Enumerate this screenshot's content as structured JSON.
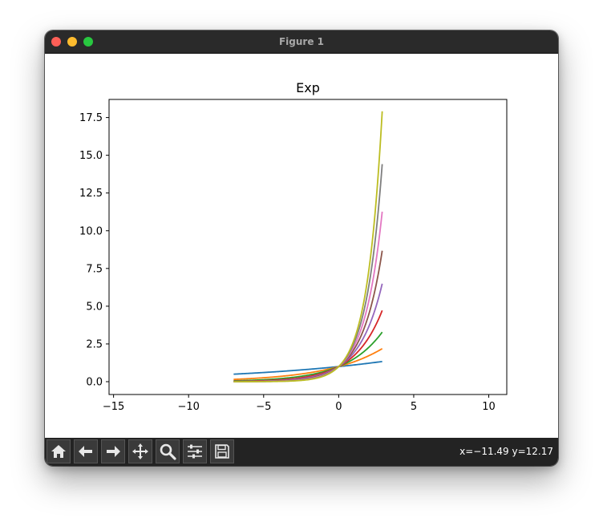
{
  "window": {
    "title": "Figure 1"
  },
  "toolbar": {
    "buttons": [
      {
        "name": "home-icon"
      },
      {
        "name": "back-arrow-icon"
      },
      {
        "name": "forward-arrow-icon"
      },
      {
        "name": "pan-move-icon"
      },
      {
        "name": "zoom-magnifier-icon"
      },
      {
        "name": "configure-subplots-icon"
      },
      {
        "name": "save-floppy-icon"
      }
    ],
    "coords": "x=−11.49 y=12.17"
  },
  "chart_data": {
    "type": "line",
    "title": "Exp",
    "xlabel": "",
    "ylabel": "",
    "xlim": [
      -15.3,
      11.2
    ],
    "ylim": [
      -0.85,
      18.7
    ],
    "xticks": [
      -15,
      -10,
      -5,
      0,
      5,
      10
    ],
    "xtick_labels": [
      "−15",
      "−10",
      "−5",
      "0",
      "5",
      "10"
    ],
    "yticks": [
      0.0,
      2.5,
      5.0,
      7.5,
      10.0,
      12.5,
      15.0,
      17.5
    ],
    "ytick_labels": [
      "0.0",
      "2.5",
      "5.0",
      "7.5",
      "10.0",
      "12.5",
      "15.0",
      "17.5"
    ],
    "grid": false,
    "x_range": [
      -7,
      2.9
    ],
    "series": [
      {
        "rate": 0.1,
        "color": "#1f77b4"
      },
      {
        "rate": 0.27,
        "color": "#ff7f0e"
      },
      {
        "rate": 0.41,
        "color": "#2ca02c"
      },
      {
        "rate": 0.535,
        "color": "#d62728"
      },
      {
        "rate": 0.645,
        "color": "#9467bd"
      },
      {
        "rate": 0.745,
        "color": "#8c564b"
      },
      {
        "rate": 0.835,
        "color": "#e377c2"
      },
      {
        "rate": 0.92,
        "color": "#7f7f7f"
      },
      {
        "rate": 0.995,
        "color": "#bcbd22"
      }
    ]
  }
}
